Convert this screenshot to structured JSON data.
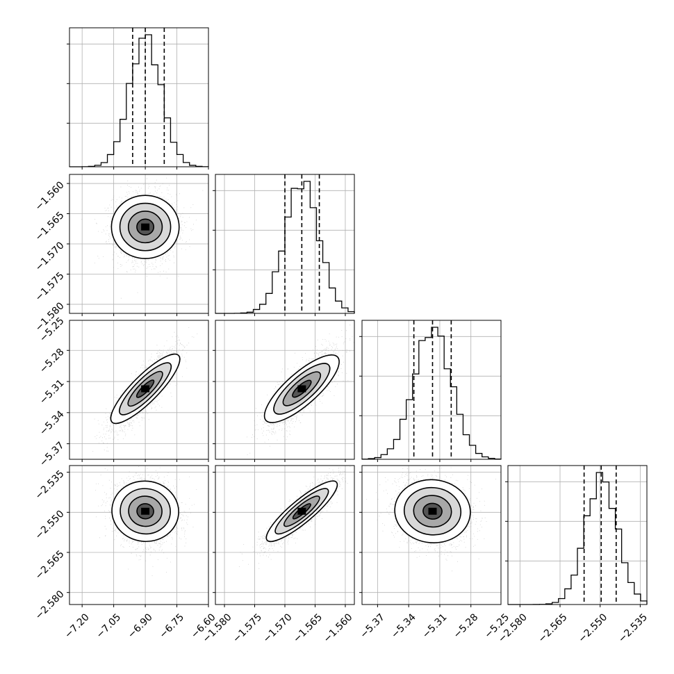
{
  "chart_data": {
    "type": "corner",
    "grid": true,
    "quantile_lines": "dashed",
    "parameters": [
      {
        "index": 0,
        "range": [
          -7.26,
          -6.6
        ],
        "ticks": [
          "-7.20",
          "-7.05",
          "-6.90",
          "-6.75",
          "-6.60"
        ],
        "tick_values": [
          -7.2,
          -7.05,
          -6.9,
          -6.75,
          -6.6
        ],
        "median": -6.9,
        "q16": -6.96,
        "q84": -6.81,
        "mean": -6.9,
        "sd": 0.075
      },
      {
        "index": 1,
        "range": [
          -1.5815,
          -1.5585
        ],
        "ticks": [
          "-1.580",
          "-1.575",
          "-1.570",
          "-1.565",
          "-1.560"
        ],
        "tick_values": [
          -1.58,
          -1.575,
          -1.57,
          -1.565,
          -1.56
        ],
        "median": -1.5672,
        "q16": -1.57,
        "q84": -1.5643,
        "mean": -1.5672,
        "sd": 0.0028
      },
      {
        "index": 2,
        "range": [
          -5.385,
          -5.251
        ],
        "ticks": [
          "-5.37",
          "-5.34",
          "-5.31",
          "-5.28",
          "-5.25"
        ],
        "tick_values": [
          -5.37,
          -5.34,
          -5.31,
          -5.28,
          -5.25
        ],
        "median": -5.317,
        "q16": -5.335,
        "q84": -5.299,
        "mean": -5.317,
        "sd": 0.018
      },
      {
        "index": 3,
        "range": [
          -2.5845,
          -2.5325
        ],
        "ticks": [
          "-2.580",
          "-2.565",
          "-2.550",
          "-2.535"
        ],
        "tick_values": [
          -2.58,
          -2.565,
          -2.55,
          -2.535
        ],
        "median": -2.5496,
        "q16": -2.556,
        "q84": -2.544,
        "mean": -2.5496,
        "sd": 0.006
      }
    ],
    "correlations": {
      "1,0": 0.0,
      "2,0": 0.85,
      "2,1": 0.8,
      "3,0": -0.1,
      "3,1": 0.88,
      "3,2": -0.1
    }
  }
}
